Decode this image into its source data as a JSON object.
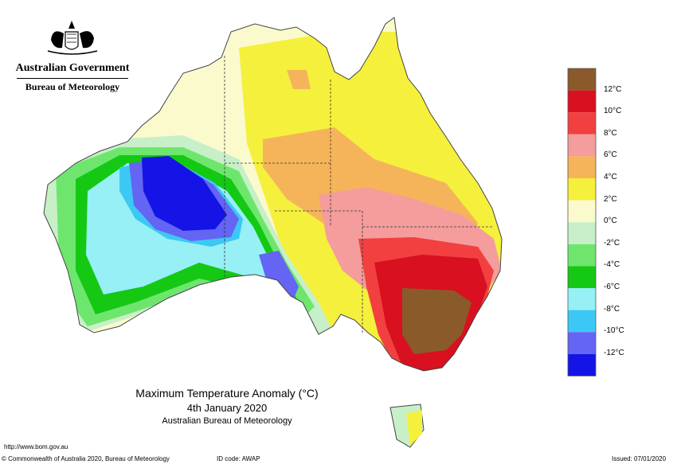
{
  "header": {
    "government": "Australian Government",
    "bureau": "Bureau of Meteorology"
  },
  "map_title": {
    "line1": "Maximum Temperature Anomaly (°C)",
    "line2": "4th January 2020",
    "line3": "Australian Bureau of Meteorology"
  },
  "footer": {
    "url": "http://www.bom.gov.au",
    "copyright": "© Commonwealth of Australia 2020, Bureau of Meteorology",
    "id_code": "ID code: AWAP",
    "issued": "Issued: 07/01/2020"
  },
  "legend": [
    {
      "label": "12°C",
      "color": "#8b5a2b"
    },
    {
      "label": "10°C",
      "color": "#d9101f"
    },
    {
      "label": "8°C",
      "color": "#f24040"
    },
    {
      "label": "6°C",
      "color": "#f59c9c"
    },
    {
      "label": "4°C",
      "color": "#f5b45a"
    },
    {
      "label": "2°C",
      "color": "#f5f03c"
    },
    {
      "label": "0°C",
      "color": "#fafacd"
    },
    {
      "label": "-2°C",
      "color": "#c8f0c8"
    },
    {
      "label": "-4°C",
      "color": "#6ee66e"
    },
    {
      "label": "-6°C",
      "color": "#14c814"
    },
    {
      "label": "-8°C",
      "color": "#96f0f5"
    },
    {
      "label": "-10°C",
      "color": "#3cc8f5"
    },
    {
      "label": "-12°C",
      "color": "#6464f5"
    },
    {
      "label": "",
      "color": "#1414e6"
    }
  ]
}
